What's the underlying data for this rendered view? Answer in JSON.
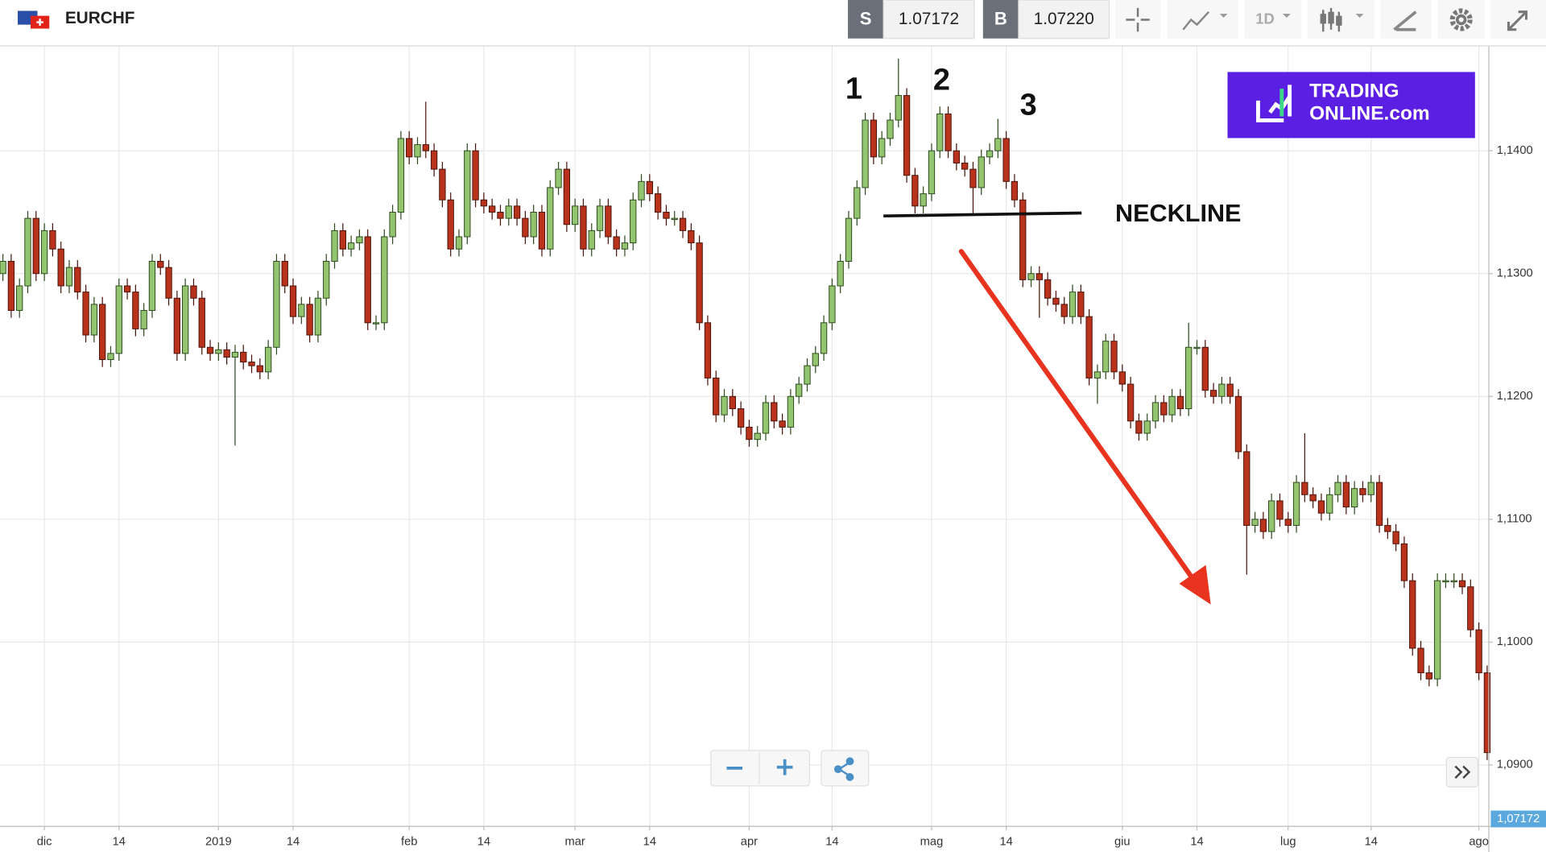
{
  "toolbar": {
    "symbol": "EURCHF",
    "sell_label": "S",
    "sell_price": "1.07172",
    "buy_label": "B",
    "buy_price": "1.07220",
    "interval": "1D"
  },
  "logo": {
    "line1": "TRADING",
    "line2": "ONLINE.com"
  },
  "annotations": [
    "1",
    "2",
    "3",
    "NECKLINE"
  ],
  "chart_data": {
    "type": "candlestick",
    "x": [
      -5,
      -4,
      -3,
      -2,
      -1,
      0,
      1,
      2,
      3,
      4,
      5,
      6,
      7,
      8,
      9,
      10,
      11,
      12,
      13,
      14,
      15,
      16,
      17,
      18,
      19,
      20,
      21,
      22,
      23,
      24,
      25,
      26,
      27,
      28,
      29,
      30,
      31,
      32,
      33,
      34,
      35,
      36,
      37,
      38,
      39,
      40,
      41,
      42,
      43,
      44,
      45,
      46,
      47,
      48,
      49,
      50,
      51,
      52,
      53,
      54,
      55,
      56,
      57,
      58,
      59,
      60,
      61,
      62,
      63,
      64,
      65,
      66,
      67,
      68,
      69,
      70,
      71,
      72,
      73,
      74,
      75,
      76,
      77,
      78,
      79,
      80,
      81,
      82,
      83,
      84,
      85,
      86,
      87,
      88,
      89,
      90,
      91,
      92,
      93,
      94,
      95,
      96,
      97,
      98,
      99,
      100,
      101,
      102,
      103,
      104,
      105,
      106,
      107,
      108,
      109,
      110,
      111,
      112,
      113,
      114,
      115,
      116,
      117,
      118,
      119,
      120,
      121,
      122,
      123,
      124,
      125,
      126,
      127,
      128,
      129,
      130,
      131,
      132,
      133,
      134,
      135,
      136,
      137,
      138,
      139,
      140,
      141,
      142,
      143,
      144,
      145,
      146,
      147,
      148,
      149,
      150,
      151,
      152,
      153,
      154,
      155,
      156,
      157,
      158,
      159,
      160,
      161,
      162,
      163,
      164,
      165,
      166,
      167,
      168,
      169,
      170,
      171,
      172,
      173,
      174
    ],
    "open": [
      1.13,
      1.131,
      1.127,
      1.129,
      1.1345,
      1.13,
      1.1335,
      1.132,
      1.129,
      1.1305,
      1.1285,
      1.125,
      1.1275,
      1.123,
      1.1235,
      1.129,
      1.1285,
      1.1255,
      1.127,
      1.131,
      1.1305,
      1.128,
      1.1235,
      1.129,
      1.128,
      1.124,
      1.1235,
      1.1238,
      1.1232,
      1.1236,
      1.1228,
      1.1225,
      1.122,
      1.124,
      1.131,
      1.129,
      1.1265,
      1.1275,
      1.125,
      1.128,
      1.131,
      1.1335,
      1.132,
      1.1325,
      1.133,
      1.126,
      1.126,
      1.133,
      1.135,
      1.141,
      1.1395,
      1.1405,
      1.14,
      1.1385,
      1.136,
      1.132,
      1.133,
      1.14,
      1.136,
      1.1355,
      1.135,
      1.1345,
      1.1355,
      1.1345,
      1.133,
      1.135,
      1.132,
      1.137,
      1.1385,
      1.134,
      1.1355,
      1.132,
      1.1335,
      1.1355,
      1.133,
      1.132,
      1.1325,
      1.136,
      1.1375,
      1.1365,
      1.135,
      1.1345,
      1.1345,
      1.1335,
      1.1325,
      1.126,
      1.1215,
      1.1185,
      1.12,
      1.119,
      1.1175,
      1.1165,
      1.117,
      1.1195,
      1.118,
      1.1175,
      1.12,
      1.121,
      1.1225,
      1.1235,
      1.126,
      1.129,
      1.131,
      1.1345,
      1.137,
      1.1425,
      1.1395,
      1.141,
      1.1425,
      1.1445,
      1.138,
      1.1355,
      1.1365,
      1.14,
      1.143,
      1.14,
      1.139,
      1.1385,
      1.137,
      1.1395,
      1.14,
      1.141,
      1.1375,
      1.136,
      1.1295,
      1.13,
      1.1295,
      1.128,
      1.1275,
      1.1265,
      1.1285,
      1.1265,
      1.1215,
      1.122,
      1.1245,
      1.122,
      1.121,
      1.118,
      1.117,
      1.118,
      1.1195,
      1.1185,
      1.12,
      1.119,
      1.124,
      1.124,
      1.1205,
      1.12,
      1.121,
      1.12,
      1.1155,
      1.1095,
      1.11,
      1.109,
      1.1115,
      1.11,
      1.1095,
      1.113,
      1.112,
      1.1115,
      1.1105,
      1.112,
      1.113,
      1.111,
      1.1125,
      1.112,
      1.113,
      1.1095,
      1.109,
      1.108,
      1.105,
      1.0995,
      1.0975,
      1.097,
      1.105,
      1.105,
      1.105,
      1.1045,
      1.101,
      1.0975
    ],
    "high": [
      1.1316,
      1.1316,
      1.1296,
      1.1351,
      1.1351,
      1.1341,
      1.1341,
      1.1326,
      1.1311,
      1.1311,
      1.1291,
      1.1281,
      1.1281,
      1.1241,
      1.1296,
      1.1296,
      1.1291,
      1.1276,
      1.1316,
      1.1316,
      1.1311,
      1.1286,
      1.1296,
      1.1296,
      1.1286,
      1.1246,
      1.1244,
      1.1244,
      1.1242,
      1.1242,
      1.1234,
      1.1231,
      1.1246,
      1.1316,
      1.1316,
      1.1296,
      1.1281,
      1.1281,
      1.1286,
      1.1316,
      1.1341,
      1.1341,
      1.1331,
      1.1336,
      1.1336,
      1.1266,
      1.1336,
      1.1356,
      1.1416,
      1.1416,
      1.1411,
      1.144,
      1.1406,
      1.1391,
      1.1366,
      1.1336,
      1.1406,
      1.1406,
      1.1366,
      1.1361,
      1.1356,
      1.1361,
      1.1361,
      1.1351,
      1.1356,
      1.1356,
      1.1376,
      1.1391,
      1.1391,
      1.1361,
      1.1361,
      1.1341,
      1.1361,
      1.1361,
      1.1336,
      1.1331,
      1.1366,
      1.1381,
      1.1381,
      1.1371,
      1.1356,
      1.1351,
      1.1351,
      1.1341,
      1.1331,
      1.1266,
      1.1221,
      1.1206,
      1.1206,
      1.1196,
      1.1181,
      1.1176,
      1.1201,
      1.1201,
      1.1186,
      1.1206,
      1.1216,
      1.1231,
      1.1241,
      1.1266,
      1.1296,
      1.1316,
      1.1351,
      1.1376,
      1.1431,
      1.1431,
      1.1416,
      1.1431,
      1.1475,
      1.1451,
      1.1386,
      1.1371,
      1.1406,
      1.1436,
      1.1436,
      1.1406,
      1.1396,
      1.1391,
      1.1401,
      1.1406,
      1.1426,
      1.1416,
      1.1381,
      1.1366,
      1.1306,
      1.1306,
      1.1301,
      1.1286,
      1.1281,
      1.1291,
      1.1291,
      1.1271,
      1.1226,
      1.1251,
      1.1251,
      1.1226,
      1.1216,
      1.1186,
      1.1186,
      1.1201,
      1.1201,
      1.1206,
      1.1206,
      1.126,
      1.1246,
      1.1246,
      1.1211,
      1.1216,
      1.1216,
      1.1206,
      1.1161,
      1.1106,
      1.1106,
      1.1121,
      1.1121,
      1.1106,
      1.1136,
      1.117,
      1.1126,
      1.1121,
      1.1126,
      1.1136,
      1.1136,
      1.1131,
      1.1131,
      1.1136,
      1.1136,
      1.1101,
      1.1096,
      1.1086,
      1.1056,
      1.1001,
      1.0981,
      1.1056,
      1.1056,
      1.1056,
      1.1056,
      1.1051,
      1.1016,
      1.0981
    ],
    "low": [
      1.1294,
      1.1264,
      1.1264,
      1.1284,
      1.1294,
      1.1294,
      1.1314,
      1.1284,
      1.1284,
      1.1279,
      1.1244,
      1.1244,
      1.1224,
      1.1224,
      1.1229,
      1.1279,
      1.1249,
      1.1249,
      1.1264,
      1.1299,
      1.1274,
      1.1229,
      1.1229,
      1.1274,
      1.1234,
      1.1229,
      1.1229,
      1.1226,
      1.116,
      1.1222,
      1.1219,
      1.1214,
      1.1214,
      1.1234,
      1.1284,
      1.1259,
      1.1259,
      1.1244,
      1.1244,
      1.1274,
      1.1304,
      1.1314,
      1.1314,
      1.1319,
      1.1254,
      1.1254,
      1.1254,
      1.1324,
      1.1344,
      1.1389,
      1.1389,
      1.1394,
      1.1379,
      1.1354,
      1.1314,
      1.1314,
      1.1324,
      1.1354,
      1.1349,
      1.1344,
      1.1339,
      1.1339,
      1.1339,
      1.1324,
      1.1324,
      1.1314,
      1.1314,
      1.1364,
      1.1334,
      1.1334,
      1.1314,
      1.1314,
      1.1329,
      1.1324,
      1.1314,
      1.1314,
      1.1319,
      1.1354,
      1.1359,
      1.1344,
      1.1339,
      1.1339,
      1.1329,
      1.1319,
      1.1254,
      1.1209,
      1.1179,
      1.1179,
      1.1184,
      1.1169,
      1.1159,
      1.1159,
      1.1164,
      1.1174,
      1.1169,
      1.1169,
      1.1194,
      1.1204,
      1.1219,
      1.1229,
      1.1254,
      1.1284,
      1.1304,
      1.1339,
      1.1364,
      1.1389,
      1.1389,
      1.1404,
      1.1419,
      1.1374,
      1.1349,
      1.1349,
      1.1359,
      1.1394,
      1.1394,
      1.1384,
      1.1379,
      1.1349,
      1.1364,
      1.1389,
      1.1394,
      1.1369,
      1.1354,
      1.1289,
      1.1289,
      1.1264,
      1.1274,
      1.1269,
      1.1259,
      1.1259,
      1.1259,
      1.1209,
      1.1194,
      1.1214,
      1.1214,
      1.1204,
      1.1174,
      1.1164,
      1.1164,
      1.1174,
      1.1179,
      1.1179,
      1.1184,
      1.1184,
      1.1234,
      1.1199,
      1.1194,
      1.1194,
      1.1194,
      1.1149,
      1.1055,
      1.1089,
      1.1084,
      1.1084,
      1.1094,
      1.1089,
      1.1089,
      1.1114,
      1.1109,
      1.1099,
      1.1099,
      1.1114,
      1.1104,
      1.1104,
      1.1114,
      1.1114,
      1.1089,
      1.1084,
      1.1074,
      1.1044,
      1.0989,
      1.0969,
      1.0964,
      1.0964,
      1.1044,
      1.1044,
      1.1039,
      1.1004,
      1.0969,
      1.0904
    ],
    "close": [
      1.131,
      1.127,
      1.129,
      1.1345,
      1.13,
      1.1335,
      1.132,
      1.129,
      1.1305,
      1.1285,
      1.125,
      1.1275,
      1.123,
      1.1235,
      1.129,
      1.1285,
      1.1255,
      1.127,
      1.131,
      1.1305,
      1.128,
      1.1235,
      1.129,
      1.128,
      1.124,
      1.1235,
      1.1238,
      1.1232,
      1.1236,
      1.1228,
      1.1225,
      1.122,
      1.124,
      1.131,
      1.129,
      1.1265,
      1.1275,
      1.125,
      1.128,
      1.131,
      1.1335,
      1.132,
      1.1325,
      1.133,
      1.126,
      1.126,
      1.133,
      1.135,
      1.141,
      1.1395,
      1.1405,
      1.14,
      1.1385,
      1.136,
      1.132,
      1.133,
      1.14,
      1.136,
      1.1355,
      1.135,
      1.1345,
      1.1355,
      1.1345,
      1.133,
      1.135,
      1.132,
      1.137,
      1.1385,
      1.134,
      1.1355,
      1.132,
      1.1335,
      1.1355,
      1.133,
      1.132,
      1.1325,
      1.136,
      1.1375,
      1.1365,
      1.135,
      1.1345,
      1.1345,
      1.1335,
      1.1325,
      1.126,
      1.1215,
      1.1185,
      1.12,
      1.119,
      1.1175,
      1.1165,
      1.117,
      1.1195,
      1.118,
      1.1175,
      1.12,
      1.121,
      1.1225,
      1.1235,
      1.126,
      1.129,
      1.131,
      1.1345,
      1.137,
      1.1425,
      1.1395,
      1.141,
      1.1425,
      1.1445,
      1.138,
      1.1355,
      1.1365,
      1.14,
      1.143,
      1.14,
      1.139,
      1.1385,
      1.137,
      1.1395,
      1.14,
      1.141,
      1.1375,
      1.136,
      1.1295,
      1.13,
      1.1295,
      1.128,
      1.1275,
      1.1265,
      1.1285,
      1.1265,
      1.1215,
      1.122,
      1.1245,
      1.122,
      1.121,
      1.118,
      1.117,
      1.118,
      1.1195,
      1.1185,
      1.12,
      1.119,
      1.124,
      1.124,
      1.1205,
      1.12,
      1.121,
      1.12,
      1.1155,
      1.1095,
      1.11,
      1.109,
      1.1115,
      1.11,
      1.1095,
      1.113,
      1.112,
      1.1115,
      1.1105,
      1.112,
      1.113,
      1.111,
      1.1125,
      1.112,
      1.113,
      1.1095,
      1.109,
      1.108,
      1.105,
      1.0995,
      1.0975,
      1.097,
      1.105,
      1.105,
      1.105,
      1.1045,
      1.101,
      1.0975,
      1.091
    ],
    "up_color": "#93c46f",
    "down_color": "#b8321c",
    "xlim": [
      -5.35,
      174.2
    ],
    "xticks": [
      {
        "value": 0,
        "label": "dic"
      },
      {
        "value": 9,
        "label": "14"
      },
      {
        "value": 21,
        "label": "2019"
      },
      {
        "value": 30,
        "label": "14"
      },
      {
        "value": 44,
        "label": "feb"
      },
      {
        "value": 53,
        "label": "14"
      },
      {
        "value": 64,
        "label": "mar"
      },
      {
        "value": 73,
        "label": "14"
      },
      {
        "value": 85,
        "label": "apr"
      },
      {
        "value": 95,
        "label": "14"
      },
      {
        "value": 107,
        "label": "mag"
      },
      {
        "value": 116,
        "label": "14"
      },
      {
        "value": 130,
        "label": "giu"
      },
      {
        "value": 139,
        "label": "14"
      },
      {
        "value": 150,
        "label": "lug"
      },
      {
        "value": 160,
        "label": "14"
      },
      {
        "value": 173,
        "label": "ago"
      }
    ],
    "ylim": [
      1.085,
      1.1485
    ],
    "yticks": [
      {
        "value": 1.09,
        "label": "1,0900"
      },
      {
        "value": 1.1,
        "label": "1,1000"
      },
      {
        "value": 1.11,
        "label": "1,1100"
      },
      {
        "value": 1.12,
        "label": "1,1200"
      },
      {
        "value": 1.13,
        "label": "1,1300"
      },
      {
        "value": 1.14,
        "label": "1,1400"
      }
    ],
    "last_price": {
      "value": 1.07172,
      "label": "1,07172"
    },
    "grid": true
  }
}
